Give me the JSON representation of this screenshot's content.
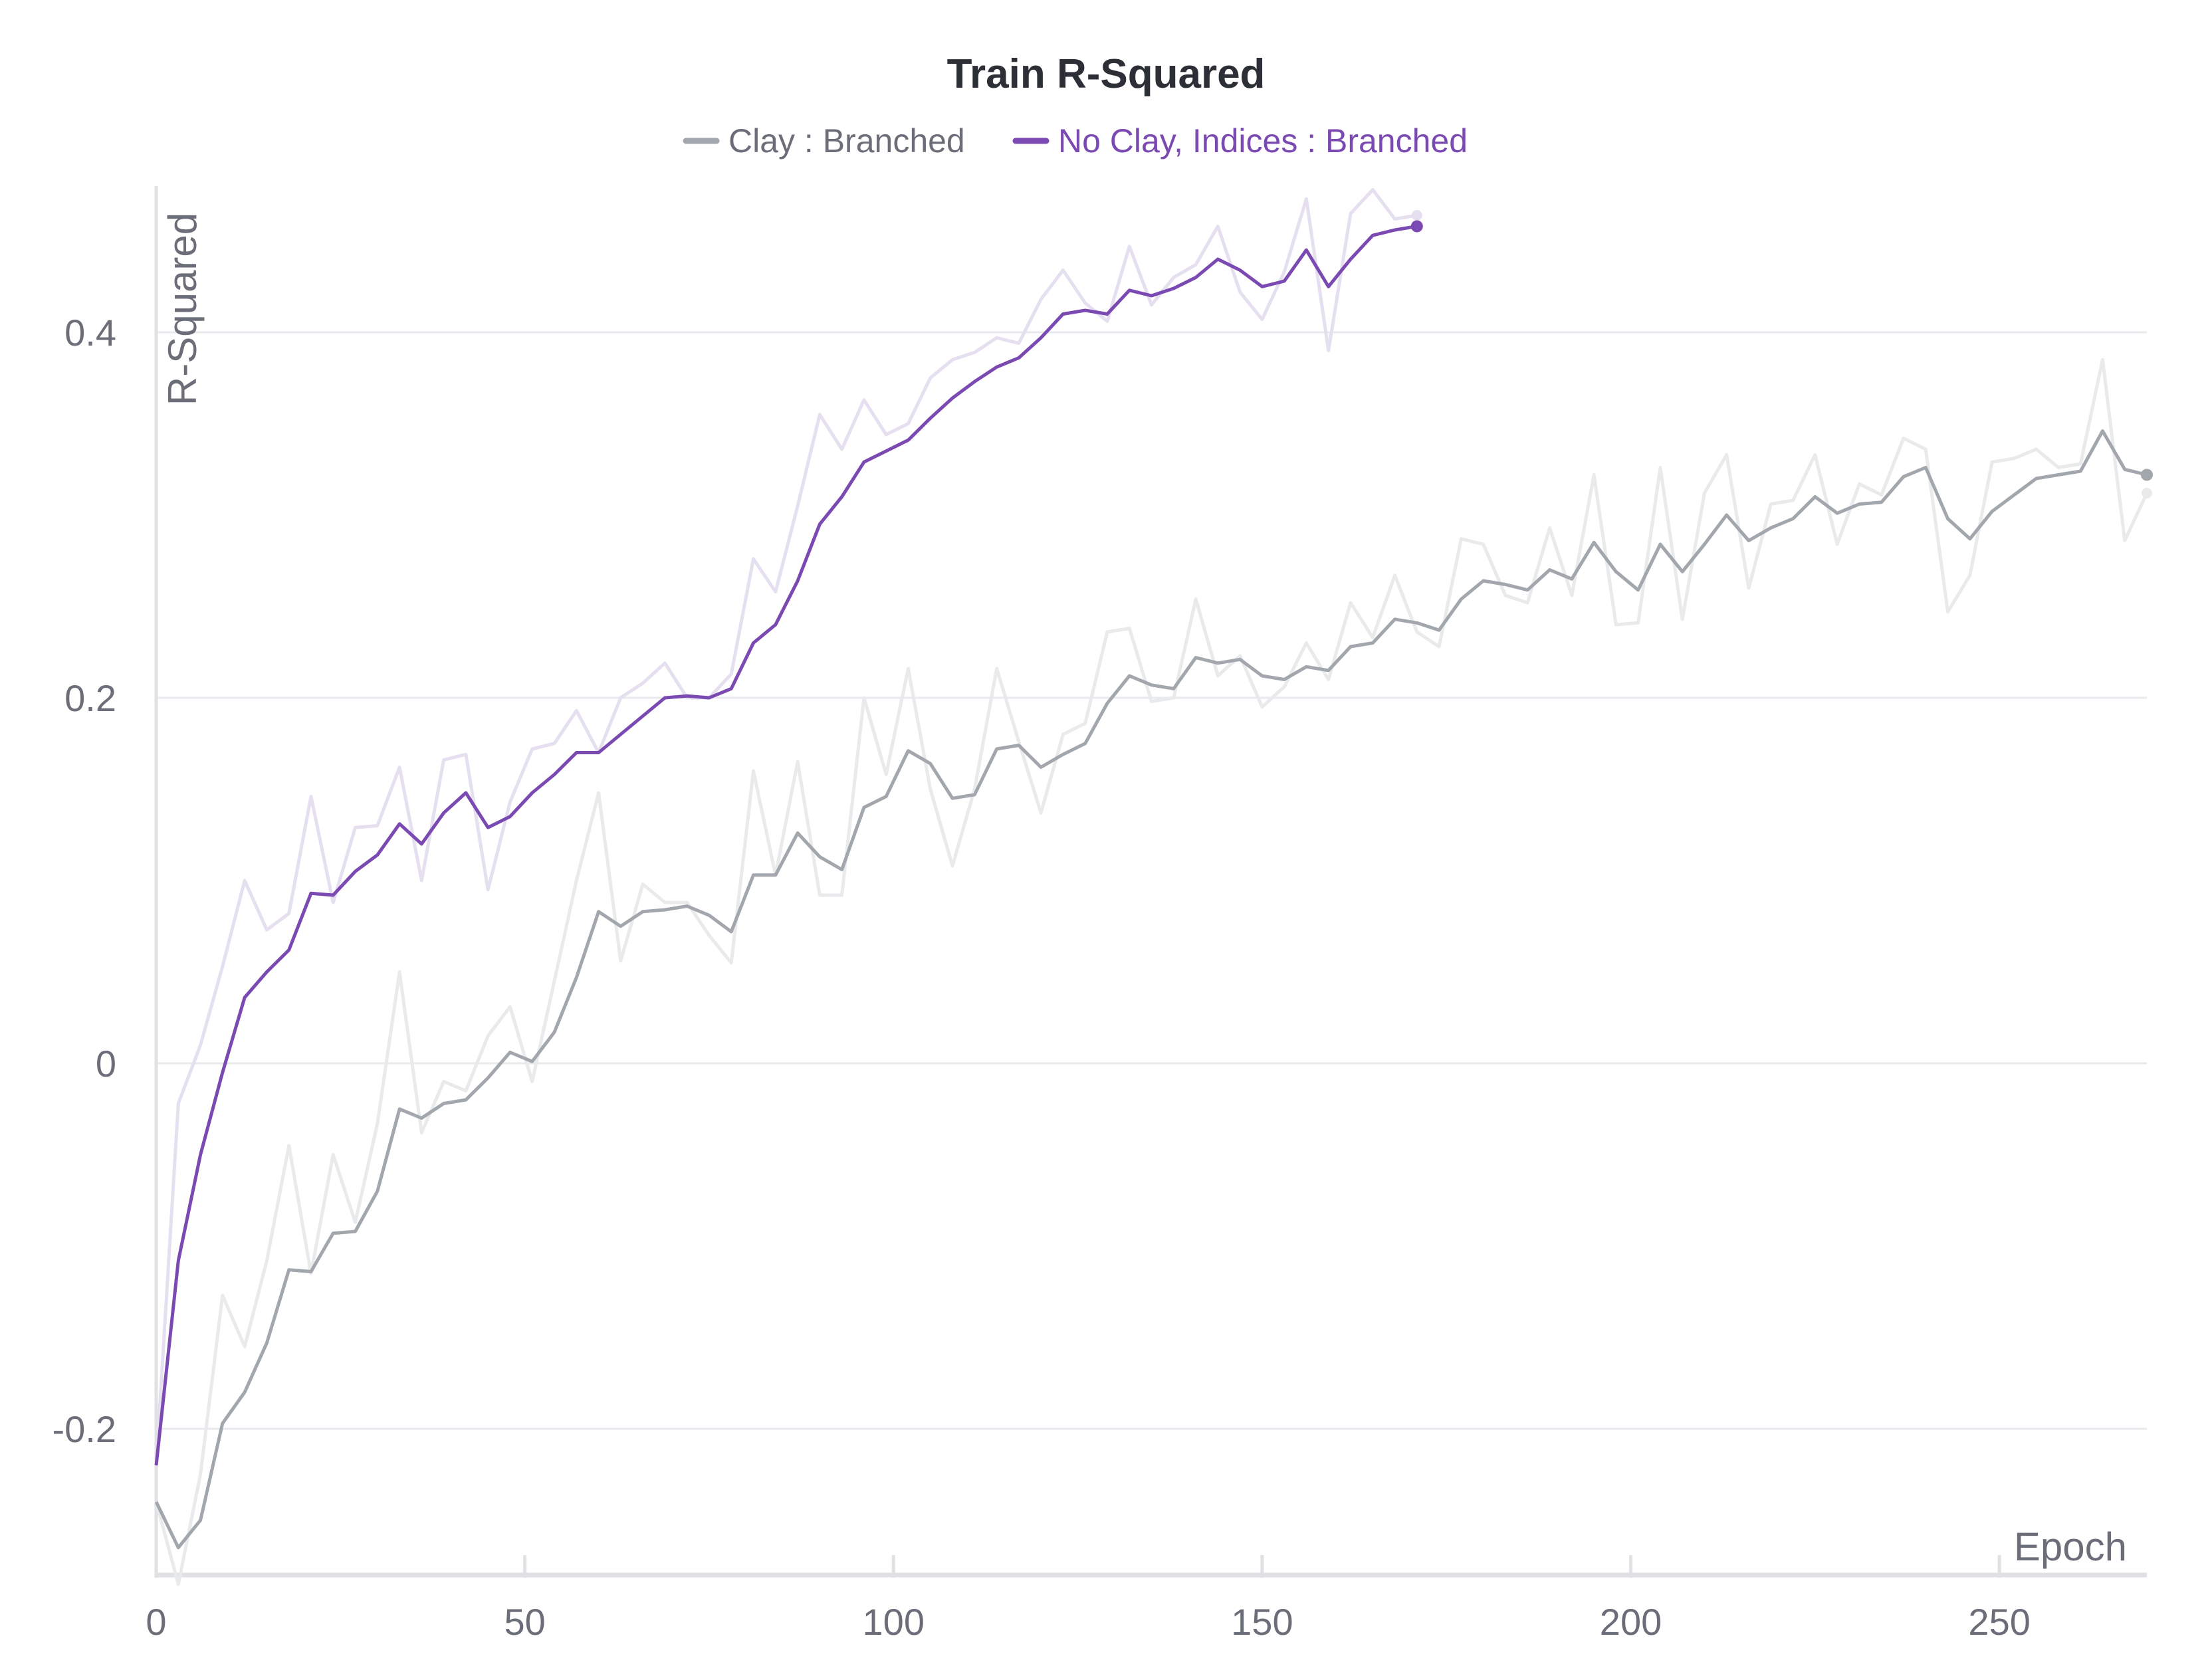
{
  "chart_data": {
    "type": "line",
    "title": "Train R-Squared",
    "xlabel": "Epoch",
    "ylabel": "R-Squared",
    "xlim": [
      0,
      270
    ],
    "ylim": [
      -0.28,
      0.48
    ],
    "xticks": [
      0,
      50,
      100,
      150,
      200,
      250
    ],
    "xtick_labels": [
      "0",
      "50",
      "100",
      "150",
      "200",
      "250"
    ],
    "yticks": [
      -0.2,
      0,
      0.2,
      0.4
    ],
    "ytick_labels": [
      "-0.2",
      "0",
      "0.2",
      "0.4"
    ],
    "grid": true,
    "legend_position": "top-center",
    "series": [
      {
        "name": "Clay : Branched",
        "color": "#a2a6ad",
        "raw_color": "#e9eaec",
        "smoothed": [
          [
            0,
            -0.24
          ],
          [
            3,
            -0.265
          ],
          [
            6,
            -0.25
          ],
          [
            9,
            -0.197
          ],
          [
            12,
            -0.18
          ],
          [
            15,
            -0.153
          ],
          [
            18,
            -0.113
          ],
          [
            21,
            -0.114
          ],
          [
            24,
            -0.093
          ],
          [
            27,
            -0.092
          ],
          [
            30,
            -0.07
          ],
          [
            33,
            -0.025
          ],
          [
            36,
            -0.03
          ],
          [
            39,
            -0.022
          ],
          [
            42,
            -0.02
          ],
          [
            45,
            -0.008
          ],
          [
            48,
            0.006
          ],
          [
            51,
            0.001
          ],
          [
            54,
            0.017
          ],
          [
            57,
            0.047
          ],
          [
            60,
            0.083
          ],
          [
            63,
            0.075
          ],
          [
            66,
            0.083
          ],
          [
            69,
            0.084
          ],
          [
            72,
            0.086
          ],
          [
            75,
            0.081
          ],
          [
            78,
            0.072
          ],
          [
            81,
            0.103
          ],
          [
            84,
            0.103
          ],
          [
            87,
            0.126
          ],
          [
            90,
            0.113
          ],
          [
            93,
            0.106
          ],
          [
            96,
            0.14
          ],
          [
            99,
            0.146
          ],
          [
            102,
            0.171
          ],
          [
            105,
            0.164
          ],
          [
            108,
            0.145
          ],
          [
            111,
            0.147
          ],
          [
            114,
            0.172
          ],
          [
            117,
            0.174
          ],
          [
            120,
            0.162
          ],
          [
            123,
            0.169
          ],
          [
            126,
            0.175
          ],
          [
            129,
            0.197
          ],
          [
            132,
            0.212
          ],
          [
            135,
            0.207
          ],
          [
            138,
            0.205
          ],
          [
            141,
            0.222
          ],
          [
            144,
            0.219
          ],
          [
            147,
            0.221
          ],
          [
            150,
            0.212
          ],
          [
            153,
            0.21
          ],
          [
            156,
            0.217
          ],
          [
            159,
            0.215
          ],
          [
            162,
            0.228
          ],
          [
            165,
            0.23
          ],
          [
            168,
            0.243
          ],
          [
            171,
            0.241
          ],
          [
            174,
            0.237
          ],
          [
            177,
            0.254
          ],
          [
            180,
            0.264
          ],
          [
            183,
            0.262
          ],
          [
            186,
            0.259
          ],
          [
            189,
            0.27
          ],
          [
            192,
            0.265
          ],
          [
            195,
            0.285
          ],
          [
            198,
            0.269
          ],
          [
            201,
            0.259
          ],
          [
            204,
            0.284
          ],
          [
            207,
            0.269
          ],
          [
            210,
            0.284
          ],
          [
            213,
            0.3
          ],
          [
            216,
            0.286
          ],
          [
            219,
            0.293
          ],
          [
            222,
            0.298
          ],
          [
            225,
            0.31
          ],
          [
            228,
            0.301
          ],
          [
            231,
            0.306
          ],
          [
            234,
            0.307
          ],
          [
            237,
            0.321
          ],
          [
            240,
            0.326
          ],
          [
            243,
            0.298
          ],
          [
            246,
            0.287
          ],
          [
            249,
            0.302
          ],
          [
            252,
            0.311
          ],
          [
            255,
            0.32
          ],
          [
            258,
            0.322
          ],
          [
            261,
            0.324
          ],
          [
            264,
            0.346
          ],
          [
            267,
            0.325
          ],
          [
            270,
            0.322
          ]
        ],
        "raw": [
          [
            0,
            -0.24
          ],
          [
            3,
            -0.285
          ],
          [
            6,
            -0.225
          ],
          [
            9,
            -0.127
          ],
          [
            12,
            -0.155
          ],
          [
            15,
            -0.108
          ],
          [
            18,
            -0.045
          ],
          [
            21,
            -0.115
          ],
          [
            24,
            -0.05
          ],
          [
            27,
            -0.087
          ],
          [
            30,
            -0.033
          ],
          [
            33,
            0.05
          ],
          [
            36,
            -0.038
          ],
          [
            39,
            -0.01
          ],
          [
            42,
            -0.015
          ],
          [
            45,
            0.015
          ],
          [
            48,
            0.031
          ],
          [
            51,
            -0.01
          ],
          [
            54,
            0.045
          ],
          [
            57,
            0.1
          ],
          [
            60,
            0.148
          ],
          [
            63,
            0.056
          ],
          [
            66,
            0.098
          ],
          [
            69,
            0.088
          ],
          [
            72,
            0.088
          ],
          [
            75,
            0.07
          ],
          [
            78,
            0.055
          ],
          [
            81,
            0.16
          ],
          [
            84,
            0.103
          ],
          [
            87,
            0.165
          ],
          [
            90,
            0.092
          ],
          [
            93,
            0.092
          ],
          [
            96,
            0.2
          ],
          [
            99,
            0.158
          ],
          [
            102,
            0.216
          ],
          [
            105,
            0.15
          ],
          [
            108,
            0.108
          ],
          [
            111,
            0.15
          ],
          [
            114,
            0.216
          ],
          [
            117,
            0.176
          ],
          [
            120,
            0.137
          ],
          [
            123,
            0.18
          ],
          [
            126,
            0.186
          ],
          [
            129,
            0.236
          ],
          [
            132,
            0.238
          ],
          [
            135,
            0.198
          ],
          [
            138,
            0.2
          ],
          [
            141,
            0.254
          ],
          [
            144,
            0.212
          ],
          [
            147,
            0.223
          ],
          [
            150,
            0.195
          ],
          [
            153,
            0.206
          ],
          [
            156,
            0.23
          ],
          [
            159,
            0.21
          ],
          [
            162,
            0.252
          ],
          [
            165,
            0.233
          ],
          [
            168,
            0.267
          ],
          [
            171,
            0.236
          ],
          [
            174,
            0.228
          ],
          [
            177,
            0.287
          ],
          [
            180,
            0.284
          ],
          [
            183,
            0.256
          ],
          [
            186,
            0.252
          ],
          [
            189,
            0.293
          ],
          [
            192,
            0.256
          ],
          [
            195,
            0.322
          ],
          [
            198,
            0.24
          ],
          [
            201,
            0.241
          ],
          [
            204,
            0.326
          ],
          [
            207,
            0.243
          ],
          [
            210,
            0.312
          ],
          [
            213,
            0.333
          ],
          [
            216,
            0.26
          ],
          [
            219,
            0.306
          ],
          [
            222,
            0.308
          ],
          [
            225,
            0.333
          ],
          [
            228,
            0.284
          ],
          [
            231,
            0.317
          ],
          [
            234,
            0.311
          ],
          [
            237,
            0.342
          ],
          [
            240,
            0.336
          ],
          [
            243,
            0.247
          ],
          [
            246,
            0.267
          ],
          [
            249,
            0.329
          ],
          [
            252,
            0.331
          ],
          [
            255,
            0.336
          ],
          [
            258,
            0.326
          ],
          [
            261,
            0.328
          ],
          [
            264,
            0.385
          ],
          [
            267,
            0.286
          ],
          [
            270,
            0.312
          ]
        ]
      },
      {
        "name": "No Clay, Indices : Branched",
        "color": "#7b49b2",
        "raw_color": "#e5dff0",
        "smoothed": [
          [
            0,
            -0.22
          ],
          [
            3,
            -0.108
          ],
          [
            6,
            -0.05
          ],
          [
            9,
            -0.005
          ],
          [
            12,
            0.036
          ],
          [
            15,
            0.05
          ],
          [
            18,
            0.062
          ],
          [
            21,
            0.093
          ],
          [
            24,
            0.092
          ],
          [
            27,
            0.105
          ],
          [
            30,
            0.114
          ],
          [
            33,
            0.131
          ],
          [
            36,
            0.12
          ],
          [
            39,
            0.137
          ],
          [
            42,
            0.148
          ],
          [
            45,
            0.129
          ],
          [
            48,
            0.135
          ],
          [
            51,
            0.148
          ],
          [
            54,
            0.158
          ],
          [
            57,
            0.17
          ],
          [
            60,
            0.17
          ],
          [
            63,
            0.18
          ],
          [
            66,
            0.19
          ],
          [
            69,
            0.2
          ],
          [
            72,
            0.201
          ],
          [
            75,
            0.2
          ],
          [
            78,
            0.205
          ],
          [
            81,
            0.23
          ],
          [
            84,
            0.24
          ],
          [
            87,
            0.264
          ],
          [
            90,
            0.295
          ],
          [
            93,
            0.31
          ],
          [
            96,
            0.329
          ],
          [
            99,
            0.335
          ],
          [
            102,
            0.341
          ],
          [
            105,
            0.353
          ],
          [
            108,
            0.364
          ],
          [
            111,
            0.373
          ],
          [
            114,
            0.381
          ],
          [
            117,
            0.386
          ],
          [
            120,
            0.397
          ],
          [
            123,
            0.41
          ],
          [
            126,
            0.412
          ],
          [
            129,
            0.41
          ],
          [
            132,
            0.423
          ],
          [
            135,
            0.42
          ],
          [
            138,
            0.424
          ],
          [
            141,
            0.43
          ],
          [
            144,
            0.44
          ],
          [
            147,
            0.434
          ],
          [
            150,
            0.425
          ],
          [
            153,
            0.428
          ],
          [
            156,
            0.445
          ],
          [
            159,
            0.425
          ],
          [
            162,
            0.44
          ],
          [
            165,
            0.453
          ],
          [
            168,
            0.456
          ],
          [
            171,
            0.458
          ]
        ],
        "raw": [
          [
            0,
            -0.22
          ],
          [
            3,
            -0.022
          ],
          [
            6,
            0.01
          ],
          [
            9,
            0.053
          ],
          [
            12,
            0.1
          ],
          [
            15,
            0.073
          ],
          [
            18,
            0.082
          ],
          [
            21,
            0.146
          ],
          [
            24,
            0.088
          ],
          [
            27,
            0.129
          ],
          [
            30,
            0.13
          ],
          [
            33,
            0.162
          ],
          [
            36,
            0.1
          ],
          [
            39,
            0.166
          ],
          [
            42,
            0.169
          ],
          [
            45,
            0.095
          ],
          [
            48,
            0.143
          ],
          [
            51,
            0.172
          ],
          [
            54,
            0.175
          ],
          [
            57,
            0.193
          ],
          [
            60,
            0.17
          ],
          [
            63,
            0.2
          ],
          [
            66,
            0.208
          ],
          [
            69,
            0.219
          ],
          [
            72,
            0.2
          ],
          [
            75,
            0.2
          ],
          [
            78,
            0.213
          ],
          [
            81,
            0.276
          ],
          [
            84,
            0.258
          ],
          [
            87,
            0.305
          ],
          [
            90,
            0.355
          ],
          [
            93,
            0.336
          ],
          [
            96,
            0.363
          ],
          [
            99,
            0.344
          ],
          [
            102,
            0.35
          ],
          [
            105,
            0.375
          ],
          [
            108,
            0.385
          ],
          [
            111,
            0.389
          ],
          [
            114,
            0.397
          ],
          [
            117,
            0.394
          ],
          [
            120,
            0.418
          ],
          [
            123,
            0.434
          ],
          [
            126,
            0.416
          ],
          [
            129,
            0.406
          ],
          [
            132,
            0.447
          ],
          [
            135,
            0.415
          ],
          [
            138,
            0.43
          ],
          [
            141,
            0.437
          ],
          [
            144,
            0.458
          ],
          [
            147,
            0.422
          ],
          [
            150,
            0.407
          ],
          [
            153,
            0.433
          ],
          [
            156,
            0.473
          ],
          [
            159,
            0.39
          ],
          [
            162,
            0.465
          ],
          [
            165,
            0.478
          ],
          [
            168,
            0.462
          ],
          [
            171,
            0.464
          ]
        ]
      }
    ]
  }
}
